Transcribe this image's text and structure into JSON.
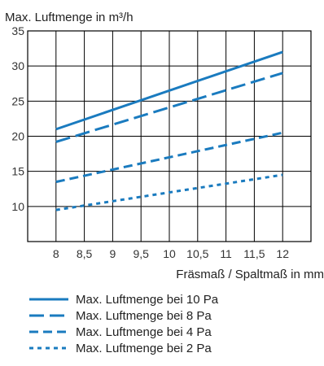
{
  "chart_data": {
    "type": "line",
    "ylabel": "Max. Luftmenge in m³/h",
    "xlabel": "Fräsmaß / Spaltmaß in mm",
    "x": [
      8,
      8.5,
      9,
      9.5,
      10,
      10.5,
      11,
      11.5,
      12
    ],
    "x_tick_labels": [
      "8",
      "8,5",
      "9",
      "9,5",
      "10",
      "10,5",
      "11",
      "11,5",
      "12"
    ],
    "xlim": [
      7.5,
      12.5
    ],
    "ylim": [
      5,
      35
    ],
    "y_ticks": [
      10,
      15,
      20,
      25,
      30,
      35
    ],
    "grid": true,
    "legend_position": "bottom",
    "color": "#1a7bbf",
    "series": [
      {
        "name": "Max. Luftmenge bei 10 Pa",
        "dash": "solid",
        "x": [
          8,
          12
        ],
        "values": [
          21,
          32
        ]
      },
      {
        "name": "Max. Luftmenge bei 8 Pa",
        "dash": "long-dash",
        "x": [
          8,
          12
        ],
        "values": [
          19.2,
          29
        ]
      },
      {
        "name": "Max. Luftmenge bei 4 Pa",
        "dash": "dash",
        "x": [
          8,
          12
        ],
        "values": [
          13.5,
          20.5
        ]
      },
      {
        "name": "Max. Luftmenge bei 2 Pa",
        "dash": "dot",
        "x": [
          8,
          12
        ],
        "values": [
          9.5,
          14.5
        ]
      }
    ]
  }
}
